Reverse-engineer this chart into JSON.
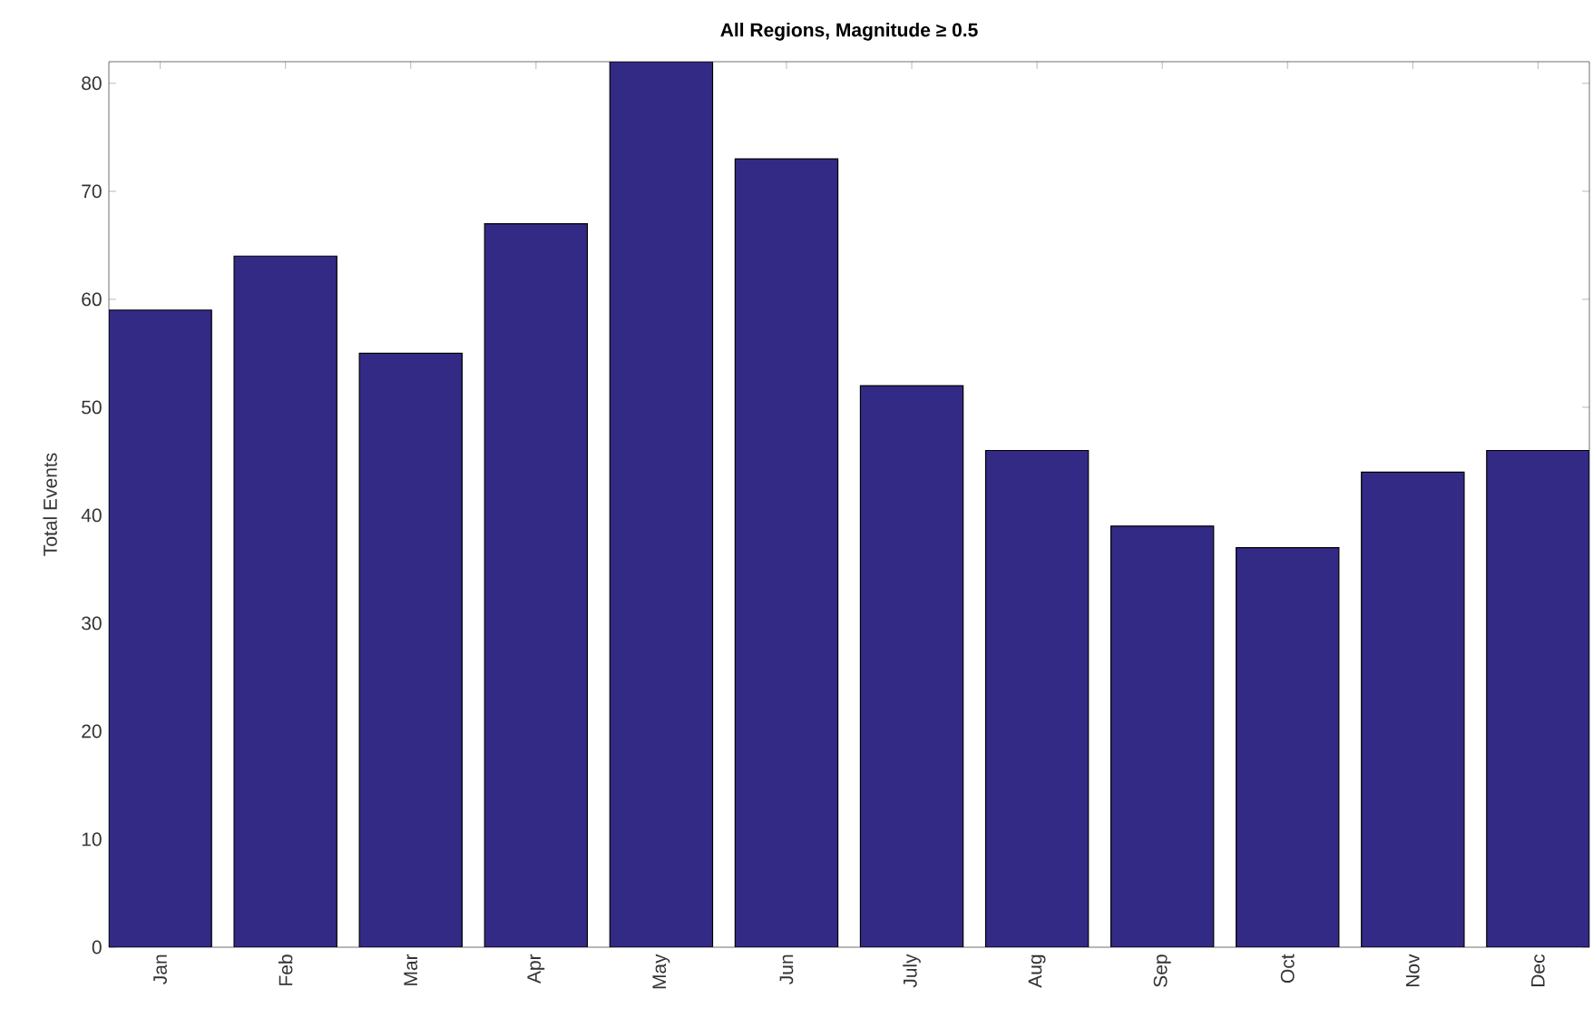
{
  "chart_data": {
    "type": "bar",
    "title": "All Regions, Magnitude ≥ 0.5",
    "ylabel": "Total Events",
    "categories": [
      "Jan",
      "Feb",
      "Mar",
      "Apr",
      "May",
      "Jun",
      "July",
      "Aug",
      "Sep",
      "Oct",
      "Nov",
      "Dec"
    ],
    "values": [
      59,
      64,
      55,
      67,
      82,
      73,
      52,
      46,
      39,
      37,
      44,
      46
    ],
    "color": "#332a85",
    "ylim": [
      0,
      82
    ],
    "yticks": [
      0,
      10,
      20,
      30,
      40,
      50,
      60,
      70,
      80
    ],
    "grid": false
  }
}
